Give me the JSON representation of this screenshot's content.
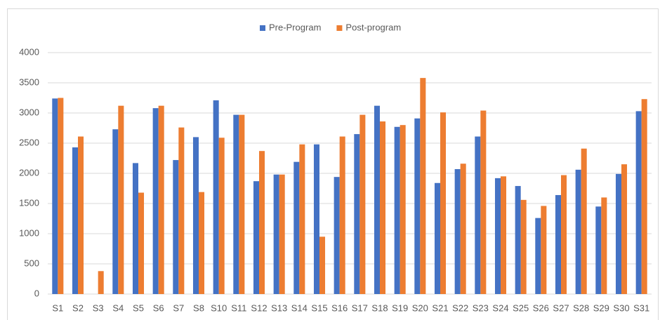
{
  "chart_data": {
    "type": "bar",
    "categories": [
      "S1",
      "S2",
      "S3",
      "S4",
      "S5",
      "S6",
      "S7",
      "S8",
      "S10",
      "S11",
      "S12",
      "S13",
      "S14",
      "S15",
      "S16",
      "S17",
      "S18",
      "S19",
      "S20",
      "S21",
      "S22",
      "S23",
      "S24",
      "S25",
      "S26",
      "S27",
      "S28",
      "S29",
      "S30",
      "S31"
    ],
    "series": [
      {
        "name": "Pre-Program",
        "color": "#4472c4",
        "values": [
          3240,
          2430,
          0,
          2730,
          2170,
          3080,
          2220,
          2600,
          3210,
          2970,
          1870,
          1980,
          2190,
          2480,
          1940,
          2650,
          3120,
          2770,
          2910,
          1840,
          2070,
          2610,
          1920,
          1790,
          1260,
          1640,
          2060,
          1450,
          1990,
          3030
        ]
      },
      {
        "name": "Post-program",
        "color": "#ed7d31",
        "values": [
          3250,
          2610,
          380,
          3120,
          1680,
          3120,
          2760,
          1690,
          2590,
          2970,
          2370,
          1980,
          2480,
          950,
          2610,
          2970,
          2860,
          2800,
          3580,
          3010,
          2160,
          3040,
          1950,
          1560,
          1460,
          1970,
          2410,
          1600,
          2150,
          3230
        ]
      }
    ],
    "ylim": [
      0,
      4000
    ],
    "yticks": [
      0,
      500,
      1000,
      1500,
      2000,
      2500,
      3000,
      3500,
      4000
    ],
    "grid": true,
    "legend": "top"
  }
}
